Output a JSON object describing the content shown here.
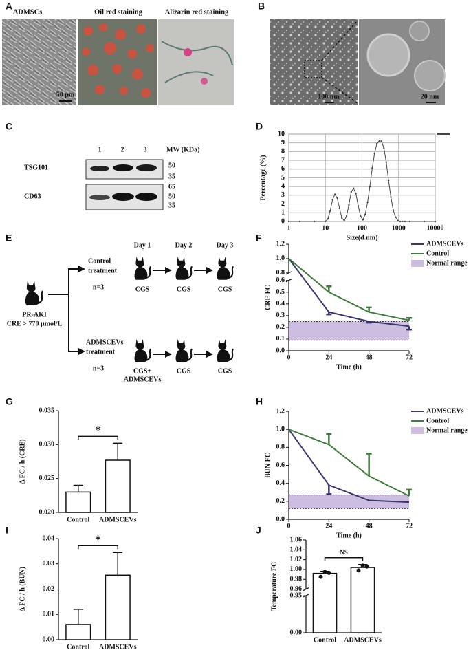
{
  "panel_labels": [
    "A",
    "B",
    "C",
    "D",
    "E",
    "F",
    "G",
    "H",
    "I",
    "J"
  ],
  "panel_a": {
    "captions": [
      "ADMSCs",
      "Oil red staining",
      "Alizarin red staining"
    ],
    "scale_bar": "50 μm"
  },
  "panel_b": {
    "scale_bars": [
      "100 nm",
      "20 nm"
    ]
  },
  "panel_c": {
    "lanes": [
      "1",
      "2",
      "3"
    ],
    "mw_label": "MW (KDa)",
    "blots": [
      {
        "name": "TSG101",
        "markers": [
          "50",
          "35"
        ]
      },
      {
        "name": "CD63",
        "markers": [
          "65",
          "50",
          "35"
        ]
      }
    ]
  },
  "panel_e": {
    "origin": [
      "PR-AKI",
      "CRE > 770 μmol/L"
    ],
    "days": [
      "Day 1",
      "Day 2",
      "Day 3"
    ],
    "groups": [
      {
        "name": [
          "Control",
          "treatment"
        ],
        "n": "n=3",
        "steps": [
          [
            "CGS"
          ],
          [
            "CGS"
          ],
          [
            "CGS"
          ]
        ]
      },
      {
        "name": [
          "ADMSCEVs",
          "treatment"
        ],
        "n": "n=3",
        "steps": [
          [
            "CGS+",
            "ADMSCEVs"
          ],
          [
            "CGS"
          ],
          [
            "CGS"
          ]
        ]
      }
    ]
  },
  "chart_data": [
    {
      "type": "line",
      "xlabel": "Size(d.nm)",
      "ylabel": "Percentage (%)",
      "xscale": "log",
      "grid": true,
      "x": [
        1,
        2,
        5,
        10,
        11.7,
        13.5,
        15.7,
        18.2,
        21,
        24.4,
        28.2,
        32.7,
        37.8,
        43.8,
        50.7,
        58.8,
        68.1,
        78.8,
        91.3,
        106,
        122,
        142,
        164,
        190,
        220,
        255,
        295,
        342,
        396,
        459,
        531,
        615,
        712,
        825,
        955,
        1106,
        1281,
        1484,
        2000,
        5000,
        10000
      ],
      "series": [
        {
          "color": "#444444",
          "values": [
            0,
            0,
            0,
            0,
            0.3,
            1.2,
            2.5,
            3.1,
            2.7,
            1.5,
            0.4,
            0.1,
            0.6,
            1.9,
            3.4,
            3.8,
            3.2,
            1.8,
            0.6,
            0.2,
            0.8,
            2.2,
            4.0,
            6.1,
            7.8,
            8.9,
            9.2,
            9.2,
            8.4,
            6.8,
            4.7,
            2.8,
            1.3,
            0.5,
            0.1,
            0,
            0,
            0,
            0,
            0,
            0
          ]
        }
      ],
      "xlim": [
        1,
        10000
      ],
      "xticks": [
        1,
        10,
        100,
        1000,
        10000
      ],
      "ylim": [
        0,
        10
      ],
      "yticks": [
        0,
        1,
        2,
        3,
        4,
        5,
        6,
        7,
        8,
        9,
        10
      ]
    },
    {
      "type": "line",
      "xlabel": "Time (h)",
      "ylabel": "CRE FC",
      "x": [
        0,
        24,
        48,
        72
      ],
      "xlim": [
        0,
        72
      ],
      "xticks": [
        0,
        24,
        48,
        72
      ],
      "ylim": [
        0,
        1.2
      ],
      "y_break": [
        0.6,
        0.8
      ],
      "yticks": [
        {
          "value": 0,
          "label": "0.0"
        },
        0.1,
        0.2,
        0.3,
        0.4,
        0.5,
        0.6,
        0.8,
        {
          "value": 1,
          "label": "1.0"
        },
        1.2
      ],
      "series": [
        {
          "name": "ADMSCEVs",
          "color": "#3a3470",
          "values": [
            1.0,
            0.33,
            0.25,
            0.21
          ],
          "errors": [
            null,
            0.02,
            0.01,
            0.03
          ],
          "error_side": "lower"
        },
        {
          "name": "Control",
          "color": "#3e7d3a",
          "values": [
            1.0,
            0.5,
            0.33,
            0.26
          ],
          "errors": [
            null,
            0.05,
            0.04,
            0.02
          ],
          "error_side": "upper"
        }
      ],
      "normal_range": {
        "name": "Normal range",
        "range": [
          0.09,
          0.25
        ],
        "color": "#cdbde0"
      }
    },
    {
      "type": "bar",
      "ylabel": "Δ FC / h (CRE)",
      "categories": [
        "Control",
        "ADMSCEVs"
      ],
      "values": [
        0.023,
        0.0277
      ],
      "errors": [
        0.001,
        0.0025
      ],
      "color": "#ffffff",
      "ylim": [
        0.02,
        0.035
      ],
      "yticks": [
        {
          "value": 0.02,
          "label": "0.020"
        },
        {
          "value": 0.025,
          "label": "0.025"
        },
        {
          "value": 0.03,
          "label": "0.030"
        },
        {
          "value": 0.035,
          "label": "0.035"
        }
      ],
      "annotation": "*"
    },
    {
      "type": "line",
      "xlabel": "Time (h)",
      "ylabel": "BUN FC",
      "x": [
        0,
        24,
        48,
        72
      ],
      "xlim": [
        0,
        72
      ],
      "xticks": [
        0,
        24,
        48,
        72
      ],
      "ylim": [
        0,
        1.2
      ],
      "yticks": [
        {
          "value": 0,
          "label": "0.0"
        },
        0.2,
        0.4,
        0.6,
        0.8,
        {
          "value": 1,
          "label": "1.0"
        },
        1.2
      ],
      "series": [
        {
          "name": "ADMSCEVs",
          "color": "#3a3470",
          "values": [
            1.0,
            0.38,
            0.21,
            0.19
          ],
          "errors": [
            null,
            0.1,
            null,
            null
          ],
          "error_side": "lower"
        },
        {
          "name": "Control",
          "color": "#3e7d3a",
          "values": [
            1.0,
            0.83,
            0.48,
            0.26
          ],
          "errors": [
            null,
            0.12,
            0.25,
            0.07
          ],
          "error_side": "upper"
        }
      ],
      "normal_range": {
        "name": "Normal range",
        "range": [
          0.12,
          0.27
        ],
        "color": "#cdbde0"
      }
    },
    {
      "type": "bar",
      "ylabel": "Δ FC / h (BUN)",
      "categories": [
        "Control",
        "ADMSCEVs"
      ],
      "values": [
        0.006,
        0.0255
      ],
      "errors": [
        0.006,
        0.009
      ],
      "color": "#ffffff",
      "ylim": [
        0,
        0.04
      ],
      "yticks": [
        {
          "value": 0,
          "label": "0.00"
        },
        {
          "value": 0.01,
          "label": "0.01"
        },
        {
          "value": 0.02,
          "label": "0.02"
        },
        {
          "value": 0.03,
          "label": "0.03"
        },
        {
          "value": 0.04,
          "label": "0.04"
        }
      ],
      "annotation": "*"
    },
    {
      "type": "bar",
      "ylabel": "Temperature FC",
      "categories": [
        "Control",
        "ADMSCEVs"
      ],
      "values": [
        0.992,
        1.004
      ],
      "errors": [
        0.004,
        0.006
      ],
      "points": [
        [
          0.985,
          0.995,
          0.993
        ],
        [
          0.998,
          1.008,
          1.006
        ]
      ],
      "color": "#ffffff",
      "ylim": [
        0,
        1.06
      ],
      "y_break": [
        0.95,
        0.96
      ],
      "yticks": [
        {
          "value": 0,
          "label": "0.00"
        },
        0.95,
        0.96,
        0.98,
        {
          "value": 1,
          "label": "1.00"
        },
        1.02,
        1.04,
        1.06
      ],
      "annotation": "NS"
    }
  ]
}
